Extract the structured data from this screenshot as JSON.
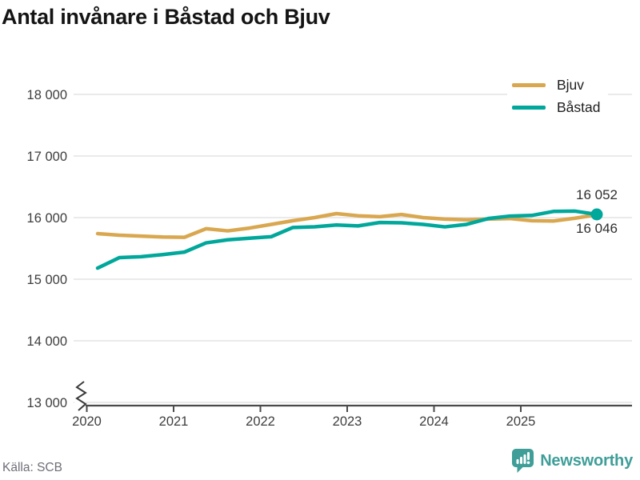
{
  "chart_data": {
    "type": "line",
    "title": "Antal invånare i Båstad och Bjuv",
    "x": [
      "2020 Q1",
      "2020 Q2",
      "2020 Q3",
      "2020 Q4",
      "2021 Q1",
      "2021 Q2",
      "2021 Q3",
      "2021 Q4",
      "2022 Q1",
      "2022 Q2",
      "2022 Q3",
      "2022 Q4",
      "2023 Q1",
      "2023 Q2",
      "2023 Q3",
      "2023 Q4",
      "2024 Q1",
      "2024 Q2",
      "2024 Q3",
      "2024 Q4",
      "2025 Q1",
      "2025 Q2",
      "2025 Q3",
      "2025 Q4"
    ],
    "series": [
      {
        "id": "bjuv",
        "name": "Bjuv",
        "color": "#d9a74f",
        "values": [
          15740,
          15715,
          15700,
          15685,
          15680,
          15820,
          15785,
          15830,
          15890,
          15950,
          16000,
          16065,
          16030,
          16015,
          16050,
          16000,
          15975,
          15965,
          15975,
          15985,
          15950,
          15945,
          15990,
          16046
        ]
      },
      {
        "id": "bastad",
        "name": "Båstad",
        "color": "#00a79b",
        "values": [
          15180,
          15350,
          15365,
          15400,
          15440,
          15590,
          15640,
          15665,
          15690,
          15840,
          15850,
          15880,
          15865,
          15920,
          15915,
          15890,
          15850,
          15890,
          15985,
          16025,
          16035,
          16100,
          16105,
          16052
        ]
      }
    ],
    "ylim": [
      13000,
      18000
    ],
    "y_ticks": [
      {
        "value": 13000,
        "label": "13 000"
      },
      {
        "value": 14000,
        "label": "14 000"
      },
      {
        "value": 15000,
        "label": "15 000"
      },
      {
        "value": 16000,
        "label": "16 000"
      },
      {
        "value": 17000,
        "label": "17 000"
      },
      {
        "value": 18000,
        "label": "18 000"
      }
    ],
    "x_ticks": [
      {
        "value": 2020,
        "label": "2020"
      },
      {
        "value": 2021,
        "label": "2021"
      },
      {
        "value": 2022,
        "label": "2022"
      },
      {
        "value": 2023,
        "label": "2023"
      },
      {
        "value": 2024,
        "label": "2024"
      },
      {
        "value": 2025,
        "label": "2025"
      }
    ],
    "grid": "horizontal",
    "axis_break": true,
    "legend_position": "top-right",
    "end_labels": [
      {
        "series": "Båstad",
        "value": 16052,
        "text": "16 052"
      },
      {
        "series": "Bjuv",
        "value": 16046,
        "text": "16 046"
      }
    ]
  },
  "footer": {
    "source_label": "Källa: SCB",
    "brand_name": "Newsworthy",
    "brand_color": "#3f9e98"
  },
  "palette": {
    "grid": "#e3e3e3",
    "axis": "#4a4a4a",
    "tick_text": "#3d3d3d"
  }
}
